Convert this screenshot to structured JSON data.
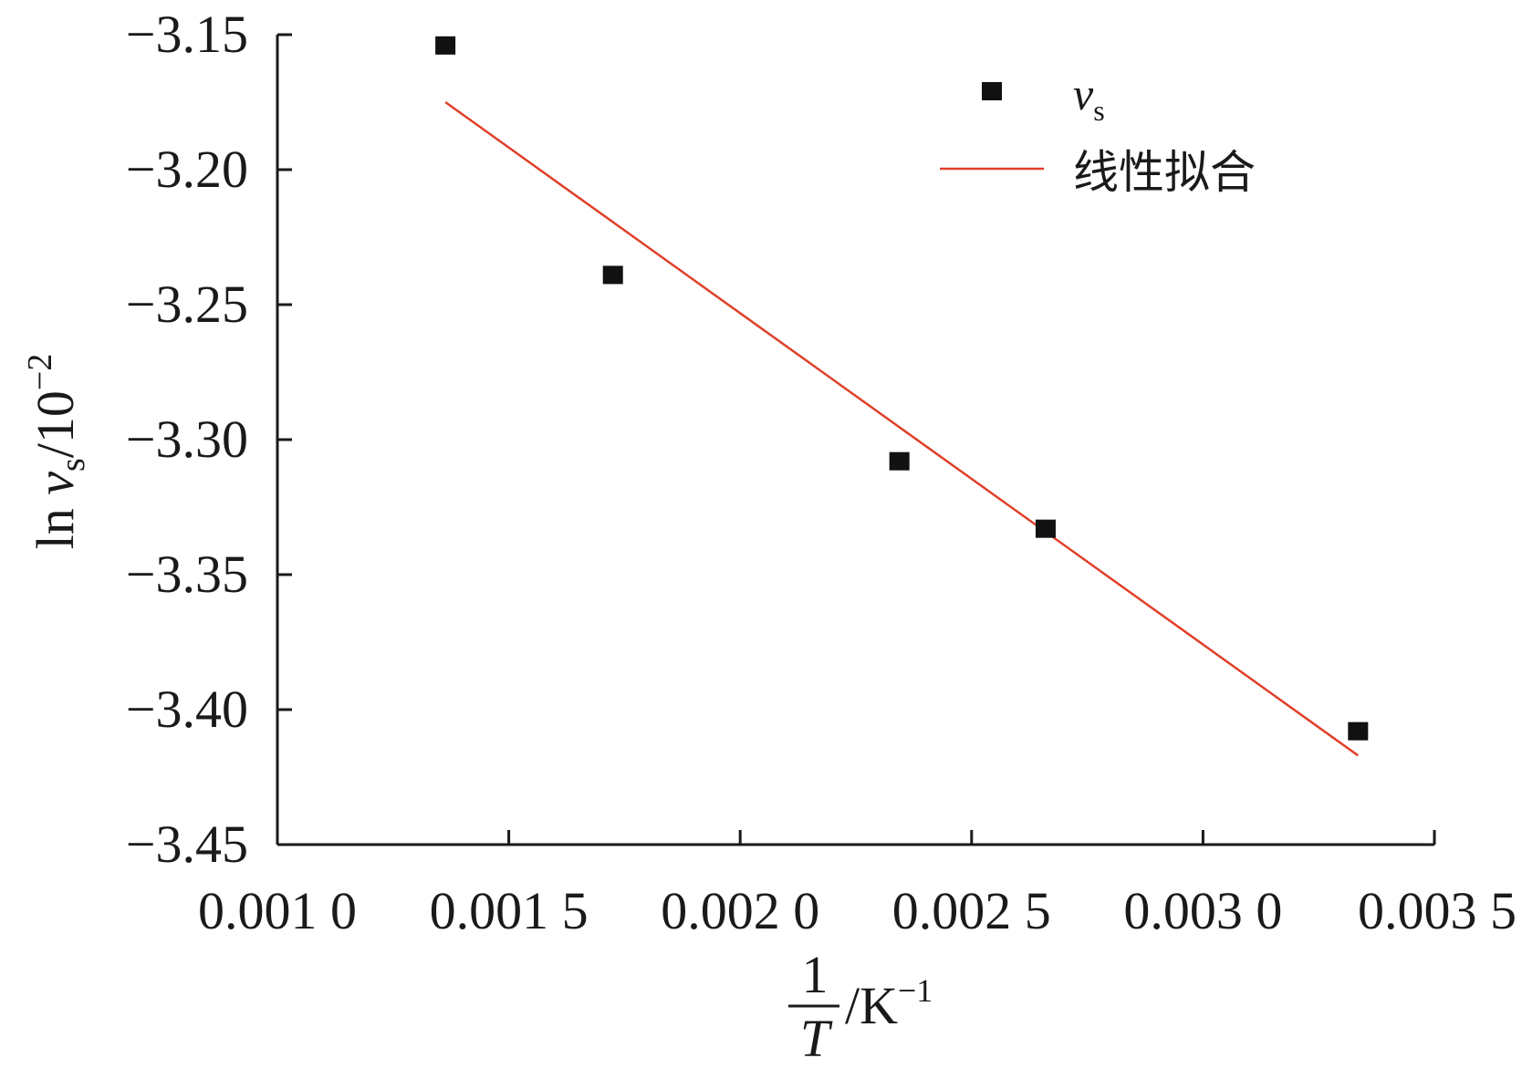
{
  "chart_data": {
    "type": "scatter",
    "x_tick_labels": [
      "0.001 0",
      "0.001 5",
      "0.002 0",
      "0.002 5",
      "0.003 0",
      "0.003 5"
    ],
    "x_ticks": [
      0.001,
      0.0015,
      0.002,
      0.0025,
      0.003,
      0.0035
    ],
    "y_tick_labels": [
      "−3.15",
      "−3.20",
      "−3.25",
      "−3.30",
      "−3.35",
      "−3.40",
      "−3.45"
    ],
    "y_ticks": [
      -3.15,
      -3.2,
      -3.25,
      -3.3,
      -3.35,
      -3.4,
      -3.45
    ],
    "xlim": [
      0.001,
      0.0035
    ],
    "ylim": [
      -3.45,
      -3.15
    ],
    "ylabel": {
      "prefix": "ln ",
      "var": "v",
      "sub": "s",
      "mid": "/10",
      "sup": "−2"
    },
    "xlabel": {
      "numerator": "1",
      "denominator": "T",
      "unit": "/K",
      "sup": "−1"
    },
    "legend": {
      "placement": "top-right",
      "points_label_var": "v",
      "points_label_sub": "s",
      "fit_label": "线性拟合"
    },
    "series": [
      {
        "type": "scatter",
        "color": "#111111",
        "points": [
          {
            "x": 0.001363,
            "y": -3.154
          },
          {
            "x": 0.001725,
            "y": -3.239
          },
          {
            "x": 0.002344,
            "y": -3.308
          },
          {
            "x": 0.00266,
            "y": -3.333
          },
          {
            "x": 0.003335,
            "y": -3.408
          }
        ]
      },
      {
        "type": "line",
        "color": "#e0402a",
        "points": [
          {
            "x": 0.001363,
            "y": -3.175
          },
          {
            "x": 0.003335,
            "y": -3.417
          }
        ]
      }
    ],
    "grid": false
  }
}
